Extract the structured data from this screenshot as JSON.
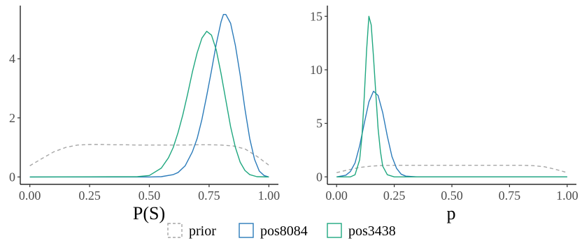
{
  "chart_data": [
    {
      "type": "line",
      "panel": "left",
      "xlabel": "P(S)",
      "ylabel": "",
      "xlim": [
        -0.04,
        1.04
      ],
      "ylim": [
        -0.25,
        5.8
      ],
      "xticks": [
        0.0,
        0.25,
        0.5,
        0.75,
        1.0
      ],
      "xtick_labels": [
        "0.00",
        "0.25",
        "0.50",
        "0.75",
        "1.00"
      ],
      "yticks": [
        0,
        2,
        4
      ],
      "ytick_labels": [
        "0",
        "2",
        "4"
      ],
      "grid": false,
      "series": [
        {
          "name": "prior",
          "x": [
            0.0,
            0.05,
            0.1,
            0.15,
            0.2,
            0.25,
            0.3,
            0.35,
            0.4,
            0.45,
            0.5,
            0.55,
            0.6,
            0.65,
            0.7,
            0.75,
            0.8,
            0.85,
            0.9,
            0.95,
            1.0
          ],
          "y": [
            0.38,
            0.62,
            0.85,
            1.0,
            1.08,
            1.1,
            1.1,
            1.09,
            1.09,
            1.08,
            1.08,
            1.08,
            1.08,
            1.08,
            1.09,
            1.09,
            1.08,
            1.05,
            0.95,
            0.7,
            0.4
          ]
        },
        {
          "name": "pos8084",
          "x": [
            0.0,
            0.5,
            0.55,
            0.6,
            0.62,
            0.65,
            0.68,
            0.7,
            0.72,
            0.74,
            0.76,
            0.78,
            0.8,
            0.81,
            0.82,
            0.84,
            0.86,
            0.88,
            0.9,
            0.92,
            0.94,
            0.96,
            0.98,
            1.0
          ],
          "y": [
            0.0,
            0.0,
            0.01,
            0.08,
            0.15,
            0.38,
            0.85,
            1.3,
            1.95,
            2.75,
            3.6,
            4.5,
            5.25,
            5.5,
            5.5,
            5.2,
            4.45,
            3.45,
            2.3,
            1.3,
            0.6,
            0.2,
            0.05,
            0.0
          ]
        },
        {
          "name": "pos3438",
          "x": [
            0.0,
            0.45,
            0.5,
            0.55,
            0.58,
            0.6,
            0.62,
            0.64,
            0.66,
            0.68,
            0.7,
            0.72,
            0.74,
            0.76,
            0.78,
            0.8,
            0.82,
            0.84,
            0.86,
            0.88,
            0.9,
            0.92,
            0.95,
            1.0
          ],
          "y": [
            0.0,
            0.01,
            0.05,
            0.3,
            0.65,
            1.0,
            1.5,
            2.1,
            2.8,
            3.55,
            4.2,
            4.7,
            4.93,
            4.8,
            4.3,
            3.5,
            2.6,
            1.7,
            1.0,
            0.5,
            0.22,
            0.08,
            0.01,
            0.0
          ]
        }
      ]
    },
    {
      "type": "line",
      "panel": "right",
      "xlabel": "p",
      "ylabel": "",
      "xlim": [
        -0.04,
        1.04
      ],
      "ylim": [
        -0.7,
        16.0
      ],
      "xticks": [
        0.0,
        0.25,
        0.5,
        0.75,
        1.0
      ],
      "xtick_labels": [
        "0.00",
        "0.25",
        "0.50",
        "0.75",
        "1.00"
      ],
      "yticks": [
        0,
        5,
        10,
        15
      ],
      "ytick_labels": [
        "0",
        "5",
        "10",
        "15"
      ],
      "grid": false,
      "series": [
        {
          "name": "prior",
          "x": [
            0.0,
            0.05,
            0.1,
            0.15,
            0.2,
            0.25,
            0.3,
            0.4,
            0.5,
            0.6,
            0.7,
            0.8,
            0.85,
            0.9,
            0.95,
            1.0
          ],
          "y": [
            0.4,
            0.65,
            0.88,
            1.0,
            1.07,
            1.08,
            1.08,
            1.08,
            1.08,
            1.08,
            1.08,
            1.08,
            1.05,
            0.95,
            0.7,
            0.4
          ]
        },
        {
          "name": "pos8084",
          "x": [
            0.0,
            0.04,
            0.06,
            0.08,
            0.1,
            0.12,
            0.14,
            0.16,
            0.18,
            0.2,
            0.22,
            0.24,
            0.26,
            0.28,
            0.3,
            0.35,
            1.0
          ],
          "y": [
            0.0,
            0.15,
            0.5,
            1.3,
            2.9,
            5.0,
            7.0,
            8.0,
            7.6,
            6.0,
            3.8,
            1.9,
            0.8,
            0.25,
            0.07,
            0.0,
            0.0
          ]
        },
        {
          "name": "pos3438",
          "x": [
            0.0,
            0.06,
            0.08,
            0.1,
            0.11,
            0.12,
            0.13,
            0.14,
            0.15,
            0.16,
            0.17,
            0.18,
            0.19,
            0.2,
            0.22,
            0.25,
            1.0
          ],
          "y": [
            0.0,
            0.0,
            0.2,
            1.6,
            3.8,
            7.5,
            11.8,
            15.0,
            14.2,
            11.2,
            7.8,
            4.5,
            2.4,
            1.0,
            0.2,
            0.0,
            0.0
          ]
        }
      ]
    }
  ],
  "legend": {
    "placement": "bottom",
    "items": [
      {
        "name": "prior",
        "color": "#a6a6a6",
        "dashed": true
      },
      {
        "name": "pos8084",
        "color": "#2b7bba",
        "dashed": false
      },
      {
        "name": "pos3438",
        "color": "#1fa77f",
        "dashed": false
      }
    ]
  },
  "colors": {
    "prior": "#a6a6a6",
    "pos8084": "#2b7bba",
    "pos3438": "#1fa77f",
    "axis": "#000000",
    "tick_text": "#4d4d4d"
  }
}
